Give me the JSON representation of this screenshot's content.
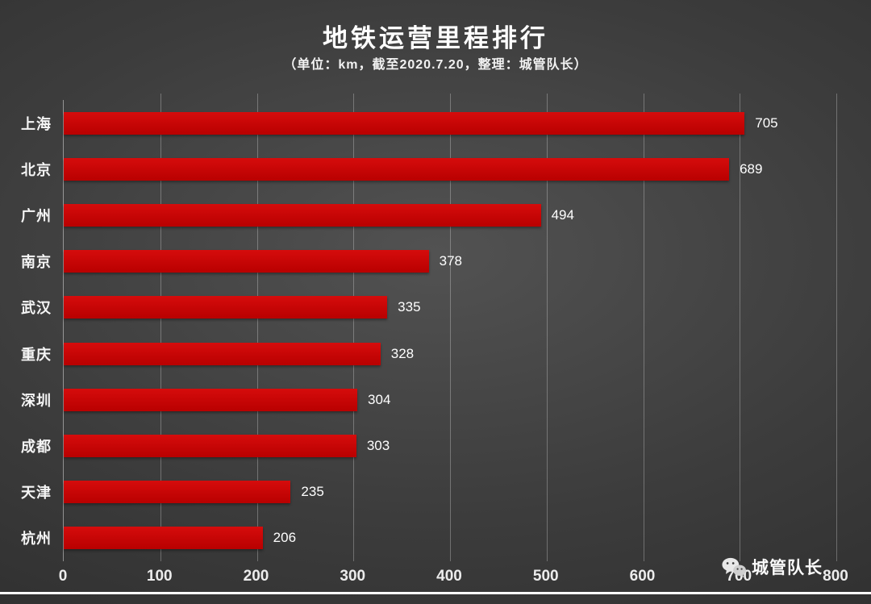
{
  "title": "地铁运营里程排行",
  "subtitle": "（单位：km，截至2020.7.20，整理：城管队长）",
  "watermark": {
    "label": "城管队长",
    "icon": "wechat-icon"
  },
  "colors": {
    "bar": "#c80000",
    "text": "#ffffff",
    "grid": "rgba(255,255,255,0.28)",
    "background_center": "#525252",
    "background_edge": "#232323"
  },
  "chart_data": {
    "type": "bar",
    "orientation": "horizontal",
    "title": "地铁运营里程排行",
    "subtitle": "（单位：km，截至2020.7.20，整理：城管队长）",
    "categories": [
      "上海",
      "北京",
      "广州",
      "南京",
      "武汉",
      "重庆",
      "深圳",
      "成都",
      "天津",
      "杭州"
    ],
    "values": [
      705,
      689,
      494,
      378,
      335,
      328,
      304,
      303,
      235,
      206
    ],
    "xlabel": "",
    "ylabel": "",
    "xlim": [
      0,
      800
    ],
    "xticks": [
      0,
      100,
      200,
      300,
      400,
      500,
      600,
      700,
      800
    ],
    "grid": true,
    "legend": false,
    "unit": "km"
  }
}
